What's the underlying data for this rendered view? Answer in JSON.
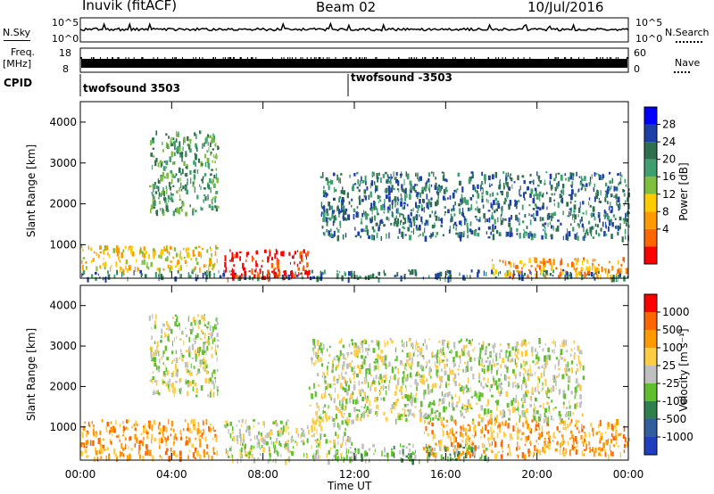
{
  "header": {
    "station": "Inuvik (fitACF)",
    "beam": "Beam 02",
    "date": "10/Jul/2016"
  },
  "nsky_panel": {
    "left_label": "N.Sky",
    "right_label": "N.Search",
    "ticks": [
      "10^5",
      "10^0"
    ],
    "right_ticks": [
      "10^5",
      "10^0"
    ]
  },
  "freq_panel": {
    "left_label_line1": "Freq.",
    "left_label_line2": "[MHz]",
    "left_ticks": [
      "18",
      "8"
    ],
    "right_label": "Nave",
    "right_ticks": [
      "60",
      "0"
    ]
  },
  "cpid_panel": {
    "label": "CPID",
    "segments": [
      {
        "text": "twofsound 3503"
      },
      {
        "text": "twofsound -3503"
      }
    ]
  },
  "power_panel": {
    "ylabel": "Slant Range [km]",
    "yticks": [
      "4000",
      "3000",
      "2000",
      "1000"
    ],
    "colorbar_label": "Power [dB]",
    "colorbar_ticks": [
      "28",
      "24",
      "20",
      "16",
      "12",
      "8",
      "4"
    ],
    "colors": [
      "#0000ff",
      "#1f3fa8",
      "#2f6f4f",
      "#3f9f6f",
      "#7fbf3f",
      "#ffcc00",
      "#ff9900",
      "#ff6600",
      "#ff0000"
    ]
  },
  "velocity_panel": {
    "ylabel": "Slant Range [km]",
    "yticks": [
      "4000",
      "3000",
      "2000",
      "1000"
    ],
    "colorbar_label": "Velocity [m s⁻¹]",
    "colorbar_ticks": [
      "1000",
      "500",
      "100",
      "25",
      "-25",
      "-100",
      "-500",
      "-1000"
    ],
    "colors": [
      "#1f3fbf",
      "#2f5f9f",
      "#2f7f4f",
      "#5fbf2f",
      "#c0c0c0",
      "#ffcc44",
      "#ff9900",
      "#ff6600",
      "#ff0000"
    ]
  },
  "xaxis": {
    "ticks": [
      "00:00",
      "04:00",
      "08:00",
      "12:00",
      "16:00",
      "20:00",
      "00:00"
    ],
    "label": "Time UT"
  },
  "chart_data": {
    "type": "heatmap",
    "x_range_hours": [
      0,
      24
    ],
    "y_range_km": [
      180,
      4500
    ],
    "power_clim_db": [
      0,
      32
    ],
    "velocity_clim": [
      -1000,
      1000
    ],
    "power_regions": [
      {
        "t0": 0,
        "t1": 24,
        "r0": 200,
        "r1": 400,
        "level": 2
      },
      {
        "t0": 0,
        "t1": 6,
        "r0": 400,
        "r1": 1000,
        "level": 5
      },
      {
        "t0": 6.3,
        "t1": 10,
        "r0": 200,
        "r1": 900,
        "level": 8
      },
      {
        "t0": 3,
        "t1": 6,
        "r0": 1800,
        "r1": 3800,
        "level": 3
      },
      {
        "t0": 10.5,
        "t1": 24,
        "r0": 1200,
        "r1": 2800,
        "level": 2
      },
      {
        "t0": 18,
        "t1": 24,
        "r0": 250,
        "r1": 700,
        "level": 6
      }
    ],
    "velocity_regions": [
      {
        "t0": 0,
        "t1": 6,
        "r0": 250,
        "r1": 1200,
        "level": 6
      },
      {
        "t0": 6.3,
        "t1": 12,
        "r0": 200,
        "r1": 1200,
        "level": 4
      },
      {
        "t0": 3,
        "t1": 6,
        "r0": 1800,
        "r1": 3800,
        "level": 4
      },
      {
        "t0": 10,
        "t1": 22,
        "r0": 1200,
        "r1": 3200,
        "level": 4
      },
      {
        "t0": 15,
        "t1": 24,
        "r0": 300,
        "r1": 1200,
        "level": 6
      },
      {
        "t0": 12,
        "t1": 18,
        "r0": 200,
        "r1": 600,
        "level": 3
      }
    ]
  }
}
